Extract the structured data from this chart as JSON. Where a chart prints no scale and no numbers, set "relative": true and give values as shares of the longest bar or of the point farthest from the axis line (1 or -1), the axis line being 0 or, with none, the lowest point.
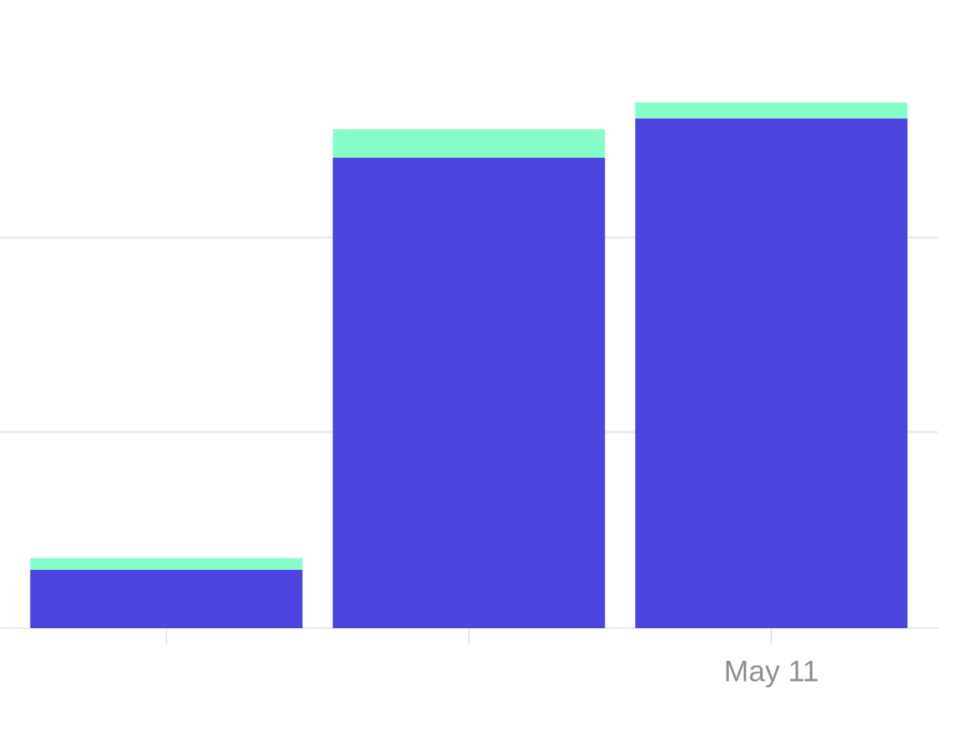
{
  "chart_data": {
    "type": "bar",
    "stacked": true,
    "relative": true,
    "categories": [
      null,
      null,
      "May 11"
    ],
    "series": [
      {
        "color": "#4c44e0",
        "values": [
          0.111,
          0.895,
          0.97
        ]
      },
      {
        "color": "#86fcc8",
        "values": [
          0.022,
          0.054,
          0.03
        ]
      }
    ],
    "ref_lines": [
      {
        "axis": "y",
        "value": 0.373,
        "color": "#ebebeb"
      },
      {
        "axis": "y",
        "value": 0.743,
        "color": "#ebebeb"
      }
    ],
    "legend": false
  }
}
